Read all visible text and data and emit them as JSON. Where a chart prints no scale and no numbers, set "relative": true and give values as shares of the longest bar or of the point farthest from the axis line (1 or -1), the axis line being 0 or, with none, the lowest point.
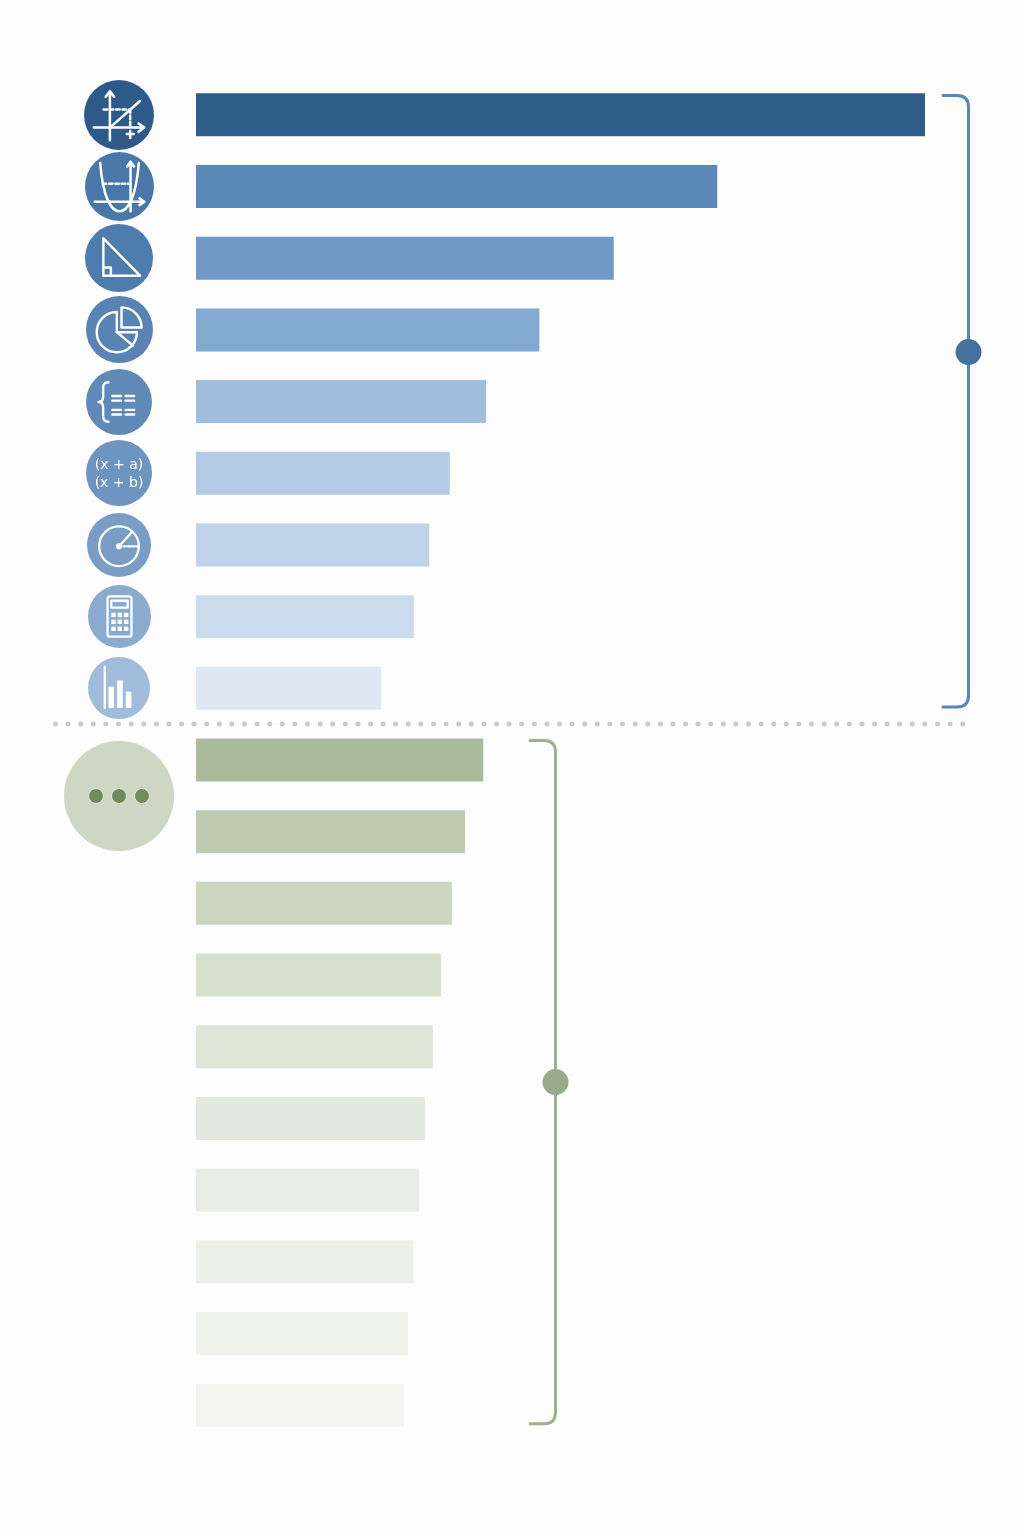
{
  "chart_data": {
    "type": "bar",
    "orientation": "horizontal",
    "relative": true,
    "categories": [
      null,
      null,
      null,
      null,
      null,
      null,
      null,
      null,
      null,
      null,
      null,
      null,
      null,
      null,
      null,
      null,
      null,
      null,
      null
    ],
    "annotations": [
      "(x + a)",
      "(x + b)"
    ],
    "values": [
      1,
      0.715,
      0.573,
      0.471,
      0.398,
      0.348,
      0.32,
      0.299,
      0.254,
      0.394,
      0.369,
      0.351,
      0.336,
      0.325,
      0.314,
      0.306,
      0.298,
      0.291,
      0.285
    ],
    "colors": [
      "#2f5d8a",
      "#5a89b7",
      "#6f9ac5",
      "#84a9d0",
      "#a1bede",
      "#b3cae4",
      "#bed2e9",
      "#cbdbee",
      "#dfe7f3",
      "#aab99a",
      "#bfcbb1",
      "#cbd6c1",
      "#d7dfcd",
      "#dfe5d7",
      "#e4e9df",
      "#e8ece4",
      "#edefe9",
      "#f0f2ec",
      "#f3f4f0"
    ]
  }
}
